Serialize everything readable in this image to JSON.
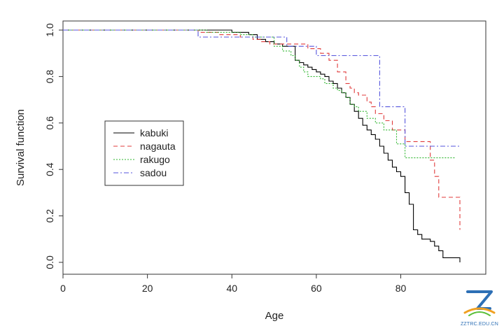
{
  "chart_data": {
    "type": "line",
    "title": "",
    "xlabel": "Age",
    "ylabel": "Survival function",
    "xlim": [
      0,
      95
    ],
    "ylim": [
      0,
      1
    ],
    "x_ticks": [
      "0",
      "20",
      "40",
      "60",
      "80"
    ],
    "y_ticks": [
      "0.0",
      "0.2",
      "0.4",
      "0.6",
      "0.8",
      "1.0"
    ],
    "legend_position": "center-left",
    "series": [
      {
        "name": "kabuki",
        "color": "#000000",
        "dash": "solid",
        "x": [
          0,
          40,
          44,
          46,
          48,
          50,
          52,
          55,
          56,
          57,
          58,
          59,
          60,
          61,
          62,
          63,
          64,
          65,
          66,
          67,
          68,
          69,
          70,
          71,
          72,
          73,
          74,
          75,
          76,
          77,
          78,
          79,
          80,
          81,
          82,
          83,
          84,
          85,
          87,
          88,
          89,
          90,
          91,
          94
        ],
        "y": [
          1.0,
          0.99,
          0.98,
          0.96,
          0.95,
          0.94,
          0.93,
          0.87,
          0.86,
          0.85,
          0.84,
          0.83,
          0.82,
          0.81,
          0.8,
          0.78,
          0.77,
          0.75,
          0.73,
          0.71,
          0.68,
          0.65,
          0.62,
          0.59,
          0.57,
          0.55,
          0.53,
          0.5,
          0.47,
          0.44,
          0.41,
          0.39,
          0.37,
          0.3,
          0.25,
          0.14,
          0.12,
          0.1,
          0.09,
          0.07,
          0.05,
          0.02,
          0.02,
          0.0
        ]
      },
      {
        "name": "nagauta",
        "color": "#e03b3b",
        "dash": "dashed",
        "x": [
          0,
          32,
          37,
          42,
          45,
          47,
          49,
          52,
          58,
          61,
          63,
          65,
          67,
          68,
          69,
          70,
          72,
          73,
          74,
          76,
          78,
          81,
          87,
          88,
          89,
          94
        ],
        "y": [
          1.0,
          0.99,
          0.98,
          0.97,
          0.96,
          0.95,
          0.94,
          0.94,
          0.92,
          0.9,
          0.87,
          0.82,
          0.77,
          0.75,
          0.73,
          0.72,
          0.69,
          0.67,
          0.64,
          0.61,
          0.57,
          0.52,
          0.44,
          0.37,
          0.28,
          0.14
        ]
      },
      {
        "name": "rakugo",
        "color": "#2fb52f",
        "dash": "dotted",
        "x": [
          0,
          34,
          42,
          45,
          50,
          52,
          54,
          55,
          56,
          57,
          58,
          59,
          61,
          62,
          64,
          65,
          66,
          67,
          68,
          69,
          70,
          71,
          72,
          74,
          76,
          79,
          81,
          93
        ],
        "y": [
          1.0,
          0.99,
          0.98,
          0.97,
          0.93,
          0.91,
          0.89,
          0.87,
          0.84,
          0.82,
          0.8,
          0.8,
          0.79,
          0.77,
          0.75,
          0.74,
          0.73,
          0.71,
          0.68,
          0.67,
          0.65,
          0.65,
          0.62,
          0.6,
          0.57,
          0.51,
          0.45,
          0.45
        ]
      },
      {
        "name": "sadou",
        "color": "#5555dd",
        "dash": "dashdot",
        "x": [
          0,
          32,
          53,
          60,
          75,
          81,
          94
        ],
        "y": [
          1.0,
          0.97,
          0.93,
          0.89,
          0.67,
          0.5,
          0.5
        ]
      }
    ]
  },
  "watermark": {
    "text": "ZZTRC.EDU.CN"
  }
}
